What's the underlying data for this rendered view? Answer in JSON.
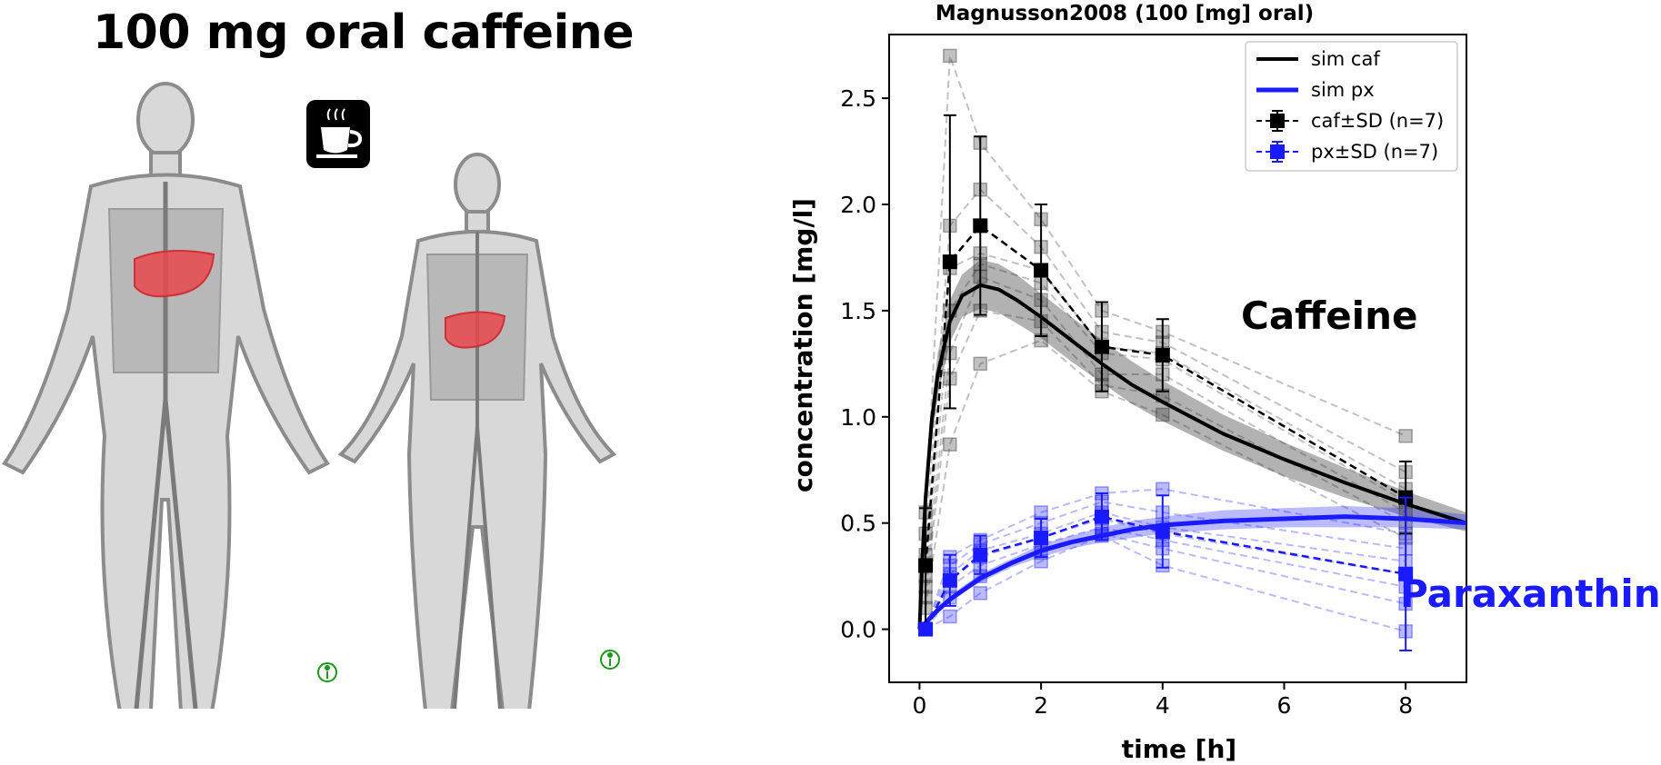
{
  "header": {
    "title": "100 mg oral caffeine"
  },
  "colors": {
    "caf": "#000000",
    "px": "#1a1aff",
    "liver": "#e8474c",
    "body": "#9a9a9a",
    "info": "#1a9a1a"
  },
  "icons": [
    "coffee-cup-icon",
    "info-person-icon",
    "male-body-icon",
    "female-body-icon",
    "liver-icon"
  ],
  "labels": {
    "caffeine": "Caffeine",
    "paraxanthine": "Paraxanthine"
  },
  "chart_data": {
    "type": "line",
    "title": "Magnusson2008 (100 [mg] oral)",
    "xlabel": "time [h]",
    "ylabel": "concentration [mg/l]",
    "xlim": [
      -0.5,
      9.0
    ],
    "ylim": [
      -0.25,
      2.8
    ],
    "xticks": [
      0,
      2,
      4,
      6,
      8
    ],
    "yticks": [
      0.0,
      0.5,
      1.0,
      1.5,
      2.0,
      2.5
    ],
    "grid": false,
    "legend": {
      "placement": "top-right",
      "entries": [
        "sim caf",
        "sim px",
        "caf±SD (n=7)",
        "px±SD (n=7)"
      ]
    },
    "series": [
      {
        "name": "sim caf",
        "x": [
          0,
          0.05,
          0.1,
          0.2,
          0.3,
          0.5,
          0.7,
          1.0,
          1.3,
          1.6,
          2.0,
          2.5,
          3.0,
          3.5,
          4.0,
          5.0,
          6.0,
          7.0,
          8.0,
          9.0
        ],
        "y": [
          0.0,
          0.35,
          0.62,
          0.98,
          1.2,
          1.45,
          1.57,
          1.62,
          1.6,
          1.55,
          1.47,
          1.36,
          1.25,
          1.15,
          1.07,
          0.92,
          0.8,
          0.69,
          0.59,
          0.5
        ],
        "band_lower": [
          0.0,
          0.3,
          0.55,
          0.9,
          1.1,
          1.35,
          1.47,
          1.51,
          1.49,
          1.44,
          1.37,
          1.26,
          1.16,
          1.06,
          0.98,
          0.84,
          0.72,
          0.62,
          0.53,
          0.46
        ],
        "band_upper": [
          0.0,
          0.4,
          0.7,
          1.06,
          1.3,
          1.55,
          1.67,
          1.74,
          1.72,
          1.67,
          1.58,
          1.47,
          1.36,
          1.26,
          1.17,
          1.01,
          0.88,
          0.76,
          0.65,
          0.55
        ]
      },
      {
        "name": "sim px",
        "x": [
          0,
          0.1,
          0.2,
          0.3,
          0.5,
          0.7,
          1.0,
          1.5,
          2.0,
          2.5,
          3.0,
          3.5,
          4.0,
          5.0,
          6.0,
          7.0,
          8.0,
          9.0
        ],
        "y": [
          0.0,
          0.03,
          0.06,
          0.09,
          0.14,
          0.18,
          0.24,
          0.31,
          0.37,
          0.41,
          0.44,
          0.47,
          0.49,
          0.51,
          0.52,
          0.53,
          0.52,
          0.5
        ],
        "band_lower": [
          0.0,
          0.03,
          0.05,
          0.08,
          0.13,
          0.17,
          0.22,
          0.29,
          0.34,
          0.38,
          0.41,
          0.43,
          0.45,
          0.47,
          0.48,
          0.48,
          0.48,
          0.47
        ],
        "band_upper": [
          0.0,
          0.04,
          0.07,
          0.1,
          0.15,
          0.2,
          0.26,
          0.33,
          0.4,
          0.44,
          0.48,
          0.51,
          0.53,
          0.56,
          0.57,
          0.58,
          0.57,
          0.54
        ]
      },
      {
        "name": "caf±SD (n=7)",
        "x": [
          0.1,
          0.5,
          1.0,
          2.0,
          3.0,
          4.0,
          8.0
        ],
        "y": [
          0.3,
          1.73,
          1.9,
          1.69,
          1.33,
          1.29,
          0.62
        ],
        "sd": [
          0.27,
          0.69,
          0.42,
          0.31,
          0.21,
          0.17,
          0.17
        ]
      },
      {
        "name": "px±SD (n=7)",
        "x": [
          0.1,
          0.5,
          1.0,
          2.0,
          3.0,
          4.0,
          8.0
        ],
        "y": [
          0.0,
          0.23,
          0.35,
          0.43,
          0.53,
          0.46,
          0.26
        ],
        "sd": [
          0.02,
          0.12,
          0.09,
          0.09,
          0.11,
          0.17,
          0.36
        ]
      }
    ],
    "individuals_caf": [
      [
        [
          0.1,
          0.55
        ],
        [
          0.5,
          2.7
        ],
        [
          1.0,
          2.29
        ],
        [
          2.0,
          1.93
        ],
        [
          3.0,
          1.5
        ],
        [
          4.0,
          1.4
        ],
        [
          8.0,
          0.91
        ]
      ],
      [
        [
          0.1,
          0.45
        ],
        [
          0.5,
          1.9
        ],
        [
          1.0,
          2.07
        ],
        [
          2.0,
          1.8
        ],
        [
          3.0,
          1.4
        ],
        [
          4.0,
          1.35
        ],
        [
          8.0,
          0.74
        ]
      ],
      [
        [
          0.1,
          0.35
        ],
        [
          0.5,
          1.7
        ],
        [
          1.0,
          1.77
        ],
        [
          2.0,
          1.69
        ],
        [
          3.0,
          1.33
        ],
        [
          4.0,
          1.3
        ],
        [
          8.0,
          0.66
        ]
      ],
      [
        [
          0.1,
          0.25
        ],
        [
          0.5,
          1.5
        ],
        [
          1.0,
          1.72
        ],
        [
          2.0,
          1.63
        ],
        [
          3.0,
          1.3
        ],
        [
          4.0,
          1.27
        ],
        [
          8.0,
          0.6
        ]
      ],
      [
        [
          0.1,
          0.2
        ],
        [
          0.5,
          1.3
        ],
        [
          1.0,
          1.66
        ],
        [
          2.0,
          1.55
        ],
        [
          3.0,
          1.2
        ],
        [
          4.0,
          1.2
        ],
        [
          8.0,
          0.55
        ]
      ],
      [
        [
          0.1,
          0.15
        ],
        [
          0.5,
          1.18
        ],
        [
          1.0,
          1.5
        ],
        [
          2.0,
          1.45
        ],
        [
          3.0,
          1.15
        ],
        [
          4.0,
          1.1
        ],
        [
          8.0,
          0.5
        ]
      ],
      [
        [
          0.1,
          0.1
        ],
        [
          0.5,
          0.87
        ],
        [
          1.0,
          1.25
        ],
        [
          2.0,
          1.36
        ],
        [
          3.0,
          1.12
        ],
        [
          4.0,
          1.01
        ],
        [
          8.0,
          0.43
        ]
      ]
    ],
    "individuals_px": [
      [
        [
          0.1,
          0.0
        ],
        [
          0.5,
          0.34
        ],
        [
          1.0,
          0.42
        ],
        [
          2.0,
          0.55
        ],
        [
          3.0,
          0.64
        ],
        [
          4.0,
          0.66
        ],
        [
          8.0,
          0.45
        ]
      ],
      [
        [
          0.1,
          0.0
        ],
        [
          0.5,
          0.3
        ],
        [
          1.0,
          0.4
        ],
        [
          2.0,
          0.5
        ],
        [
          3.0,
          0.6
        ],
        [
          4.0,
          0.55
        ],
        [
          8.0,
          0.38
        ]
      ],
      [
        [
          0.1,
          0.0
        ],
        [
          0.5,
          0.26
        ],
        [
          1.0,
          0.37
        ],
        [
          2.0,
          0.45
        ],
        [
          3.0,
          0.55
        ],
        [
          4.0,
          0.48
        ],
        [
          8.0,
          0.32
        ]
      ],
      [
        [
          0.1,
          0.0
        ],
        [
          0.5,
          0.23
        ],
        [
          1.0,
          0.34
        ],
        [
          2.0,
          0.43
        ],
        [
          3.0,
          0.52
        ],
        [
          4.0,
          0.45
        ],
        [
          8.0,
          0.26
        ]
      ],
      [
        [
          0.1,
          0.0
        ],
        [
          0.5,
          0.2
        ],
        [
          1.0,
          0.3
        ],
        [
          2.0,
          0.4
        ],
        [
          3.0,
          0.48
        ],
        [
          4.0,
          0.42
        ],
        [
          8.0,
          0.2
        ]
      ],
      [
        [
          0.1,
          0.0
        ],
        [
          0.5,
          0.15
        ],
        [
          1.0,
          0.25
        ],
        [
          2.0,
          0.36
        ],
        [
          3.0,
          0.45
        ],
        [
          4.0,
          0.38
        ],
        [
          8.0,
          0.12
        ]
      ],
      [
        [
          0.1,
          0.0
        ],
        [
          0.5,
          0.06
        ],
        [
          1.0,
          0.17
        ],
        [
          2.0,
          0.32
        ],
        [
          3.0,
          0.44
        ],
        [
          4.0,
          0.3
        ],
        [
          8.0,
          -0.01
        ]
      ]
    ]
  }
}
